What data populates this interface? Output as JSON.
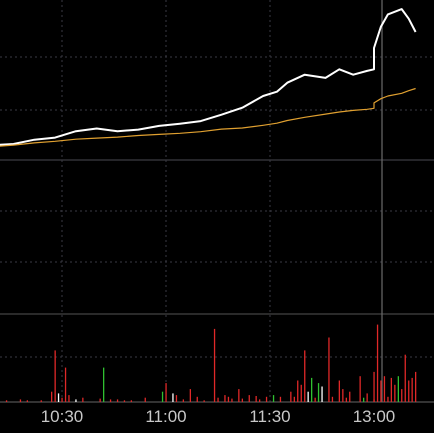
{
  "chart_data": [
    {
      "type": "line",
      "panel": "price",
      "x": [
        "10:06",
        "10:10",
        "10:16",
        "10:22",
        "10:28",
        "10:34",
        "10:40",
        "10:46",
        "10:52",
        "10:58",
        "11:04",
        "11:10",
        "11:16",
        "11:22",
        "11:28",
        "11:32",
        "11:35",
        "11:40",
        "11:46",
        "11:50",
        "11:54",
        "11:58",
        "12:00",
        "13:00",
        "13:02",
        "13:04",
        "13:08",
        "13:10",
        "13:12"
      ],
      "series": [
        {
          "color": "#ffffff",
          "values": [
            2.0,
            2.8,
            3.0,
            3.8,
            4.2,
            5.4,
            5.9,
            5.4,
            5.7,
            6.4,
            6.8,
            7.3,
            8.5,
            9.8,
            12.0,
            12.8,
            14.5,
            16.0,
            15.4,
            17.0,
            16.0,
            16.7,
            17.0,
            21.0,
            25.0,
            27.3,
            28.3,
            26.5,
            24.0
          ]
        },
        {
          "color": "#e0a030",
          "values": [
            2.2,
            2.5,
            2.8,
            3.2,
            3.5,
            3.9,
            4.1,
            4.3,
            4.6,
            4.8,
            5.0,
            5.3,
            5.8,
            6.0,
            6.5,
            6.9,
            7.4,
            8.0,
            8.6,
            9.0,
            9.3,
            9.5,
            9.7,
            10.7,
            11.5,
            12.0,
            12.5,
            13.0,
            13.4
          ]
        }
      ],
      "grid": true,
      "ylim": [
        0,
        30
      ]
    },
    {
      "type": "bar",
      "panel": "volume",
      "x_ticks": [
        "10:30",
        "11:00",
        "11:30",
        "13:00"
      ],
      "bars": [
        {
          "t": "10:11",
          "v": 2,
          "c": "#e02828"
        },
        {
          "t": "10:14",
          "v": 2,
          "c": "#e02828"
        },
        {
          "t": "10:18",
          "v": 3,
          "c": "#e02828"
        },
        {
          "t": "10:20",
          "v": 2,
          "c": "#e02828"
        },
        {
          "t": "10:24",
          "v": 2,
          "c": "#e02828"
        },
        {
          "t": "10:27",
          "v": 12,
          "c": "#e02828"
        },
        {
          "t": "10:28",
          "v": 60,
          "c": "#e02828"
        },
        {
          "t": "10:29",
          "v": 10,
          "c": "#ffffff"
        },
        {
          "t": "10:30",
          "v": 5,
          "c": "#e02828"
        },
        {
          "t": "10:31",
          "v": 40,
          "c": "#e02828"
        },
        {
          "t": "10:32",
          "v": 8,
          "c": "#e02828"
        },
        {
          "t": "10:34",
          "v": 3,
          "c": "#ffffff"
        },
        {
          "t": "10:36",
          "v": 5,
          "c": "#e02828"
        },
        {
          "t": "10:41",
          "v": 4,
          "c": "#e02828"
        },
        {
          "t": "10:42",
          "v": 40,
          "c": "#30c030"
        },
        {
          "t": "10:44",
          "v": 3,
          "c": "#e02828"
        },
        {
          "t": "10:46",
          "v": 3,
          "c": "#e02828"
        },
        {
          "t": "10:48",
          "v": 2,
          "c": "#e02828"
        },
        {
          "t": "10:50",
          "v": 2,
          "c": "#e02828"
        },
        {
          "t": "10:54",
          "v": 5,
          "c": "#e02828"
        },
        {
          "t": "10:59",
          "v": 12,
          "c": "#30c030"
        },
        {
          "t": "11:00",
          "v": 22,
          "c": "#e02828"
        },
        {
          "t": "11:02",
          "v": 10,
          "c": "#ffffff"
        },
        {
          "t": "11:03",
          "v": 8,
          "c": "#e02828"
        },
        {
          "t": "11:05",
          "v": 3,
          "c": "#e02828"
        },
        {
          "t": "11:07",
          "v": 15,
          "c": "#e02828"
        },
        {
          "t": "11:09",
          "v": 6,
          "c": "#e02828"
        },
        {
          "t": "11:11",
          "v": 2,
          "c": "#e02828"
        },
        {
          "t": "11:14",
          "v": 85,
          "c": "#e02828"
        },
        {
          "t": "11:15",
          "v": 5,
          "c": "#e02828"
        },
        {
          "t": "11:17",
          "v": 8,
          "c": "#e02828"
        },
        {
          "t": "11:18",
          "v": 6,
          "c": "#e02828"
        },
        {
          "t": "11:19",
          "v": 4,
          "c": "#e02828"
        },
        {
          "t": "11:21",
          "v": 15,
          "c": "#e02828"
        },
        {
          "t": "11:22",
          "v": 4,
          "c": "#e02828"
        },
        {
          "t": "11:24",
          "v": 8,
          "c": "#e02828"
        },
        {
          "t": "11:26",
          "v": 7,
          "c": "#e02828"
        },
        {
          "t": "11:27",
          "v": 3,
          "c": "#e02828"
        },
        {
          "t": "11:29",
          "v": 6,
          "c": "#e02828"
        },
        {
          "t": "11:31",
          "v": 8,
          "c": "#30c030"
        },
        {
          "t": "11:33",
          "v": 6,
          "c": "#e02828"
        },
        {
          "t": "11:36",
          "v": 12,
          "c": "#e02828"
        },
        {
          "t": "11:37",
          "v": 6,
          "c": "#e02828"
        },
        {
          "t": "11:38",
          "v": 25,
          "c": "#e02828"
        },
        {
          "t": "11:39",
          "v": 20,
          "c": "#e02828"
        },
        {
          "t": "11:40",
          "v": 60,
          "c": "#e02828"
        },
        {
          "t": "11:41",
          "v": 12,
          "c": "#ffffff"
        },
        {
          "t": "11:42",
          "v": 28,
          "c": "#30c030"
        },
        {
          "t": "11:43",
          "v": 5,
          "c": "#e02828"
        },
        {
          "t": "11:44",
          "v": 22,
          "c": "#30c030"
        },
        {
          "t": "11:45",
          "v": 18,
          "c": "#ffffff"
        },
        {
          "t": "11:47",
          "v": 75,
          "c": "#e02828"
        },
        {
          "t": "11:48",
          "v": 6,
          "c": "#e02828"
        },
        {
          "t": "11:50",
          "v": 25,
          "c": "#e02828"
        },
        {
          "t": "11:51",
          "v": 15,
          "c": "#e02828"
        },
        {
          "t": "11:52",
          "v": 5,
          "c": "#e02828"
        },
        {
          "t": "11:53",
          "v": 12,
          "c": "#e02828"
        },
        {
          "t": "11:56",
          "v": 30,
          "c": "#e02828"
        },
        {
          "t": "11:57",
          "v": 5,
          "c": "#30c030"
        },
        {
          "t": "11:58",
          "v": 10,
          "c": "#e02828"
        },
        {
          "t": "12:00",
          "v": 3,
          "c": "#e02828"
        },
        {
          "t": "13:00",
          "v": 35,
          "c": "#e02828"
        },
        {
          "t": "13:01",
          "v": 90,
          "c": "#e02828"
        },
        {
          "t": "13:02",
          "v": 25,
          "c": "#e02828"
        },
        {
          "t": "13:03",
          "v": 30,
          "c": "#e02828"
        },
        {
          "t": "13:04",
          "v": 6,
          "c": "#e02828"
        },
        {
          "t": "13:05",
          "v": 28,
          "c": "#e02828"
        },
        {
          "t": "13:06",
          "v": 20,
          "c": "#e02828"
        },
        {
          "t": "13:07",
          "v": 30,
          "c": "#30c030"
        },
        {
          "t": "13:08",
          "v": 15,
          "c": "#e02828"
        },
        {
          "t": "13:09",
          "v": 55,
          "c": "#e02828"
        },
        {
          "t": "13:10",
          "v": 25,
          "c": "#e02828"
        },
        {
          "t": "13:11",
          "v": 28,
          "c": "#e02828"
        },
        {
          "t": "13:12",
          "v": 35,
          "c": "#e02828"
        }
      ],
      "grid": true,
      "ylim": [
        0,
        100
      ]
    }
  ]
}
